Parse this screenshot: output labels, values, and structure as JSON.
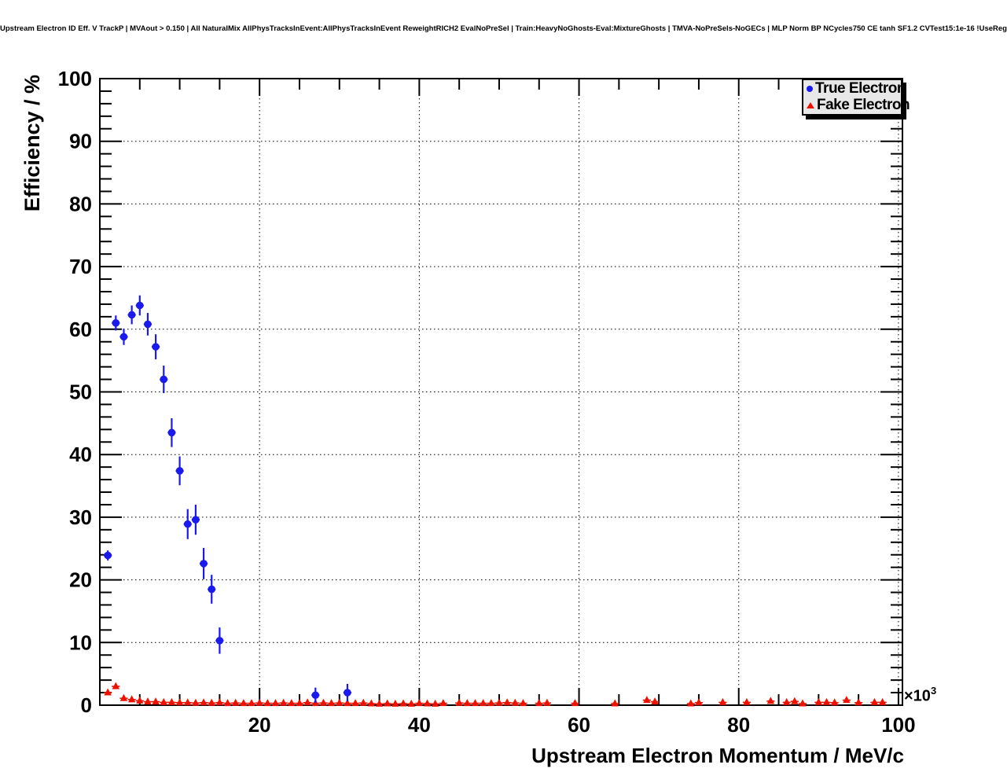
{
  "header": {
    "title": "Upstream Electron ID Eff. V TrackP | MVAout > 0.150 | All NaturalMix AllPhysTracksInEvent:AllPhysTracksInEvent ReweightRICH2 EvalNoPreSel | Train:HeavyNoGhosts-Eval:MixtureGhosts | TMVA-NoPreSels-NoGECs | MLP Norm BP NCycles750 CE tanh SF1.2 CVTest15:1e-16 !UseReg"
  },
  "chart_data": {
    "type": "scatter",
    "title": "Upstream Electron ID Eff. V TrackP | MVAout > 0.150 | All NaturalMix AllPhysTracksInEvent:AllPhysTracksInEvent ReweightRICH2 EvalNoPreSel | Train:HeavyNoGhosts-Eval:MixtureGhosts | TMVA-NoPreSels-NoGECs | MLP Norm BP NCycles750 CE tanh SF1.2 CVTest15:1e-16 !UseReg",
    "xlabel": "Upstream Electron Momentum / MeV/c",
    "ylabel": "Efficiency / %",
    "x_multiplier_base": "×10",
    "x_multiplier_exponent": "3",
    "xlim": [
      0,
      100.5
    ],
    "ylim": [
      0,
      100
    ],
    "x_major_ticks": [
      20,
      40,
      60,
      80,
      100
    ],
    "x_minor_tick_step": 5,
    "y_major_ticks": [
      0,
      10,
      20,
      30,
      40,
      50,
      60,
      70,
      80,
      90,
      100
    ],
    "y_minor_tick_step": 2,
    "grid": {
      "style": "dotted",
      "color": "#000000",
      "horizontal_at": [
        10,
        20,
        30,
        40,
        50,
        60,
        70,
        80,
        90,
        100
      ],
      "vertical_at": [
        20,
        40,
        60,
        80,
        100
      ]
    },
    "legend": {
      "position": "top-right",
      "background": "#e8e8e8",
      "entries": [
        {
          "label": "True Electron",
          "marker": "circle",
          "color": "#1a1aee"
        },
        {
          "label": "Fake Electron",
          "marker": "triangle",
          "color": "#ee1100"
        }
      ]
    },
    "series": [
      {
        "name": "True Electron",
        "marker": "circle",
        "color": "#1a1aee",
        "xerr": 0.5,
        "points": [
          {
            "x": 1.0,
            "y": 23.9,
            "ey": 0.8
          },
          {
            "x": 2.0,
            "y": 61.0,
            "ey": 1.2
          },
          {
            "x": 3.0,
            "y": 58.8,
            "ey": 1.3
          },
          {
            "x": 4.0,
            "y": 62.3,
            "ey": 1.5
          },
          {
            "x": 5.0,
            "y": 63.8,
            "ey": 1.6
          },
          {
            "x": 6.0,
            "y": 60.8,
            "ey": 1.8
          },
          {
            "x": 7.0,
            "y": 57.2,
            "ey": 2.0
          },
          {
            "x": 8.0,
            "y": 52.0,
            "ey": 2.2
          },
          {
            "x": 9.0,
            "y": 43.5,
            "ey": 2.3
          },
          {
            "x": 10.0,
            "y": 37.4,
            "ey": 2.3
          },
          {
            "x": 11.0,
            "y": 28.9,
            "ey": 2.4
          },
          {
            "x": 12.0,
            "y": 29.6,
            "ey": 2.4
          },
          {
            "x": 13.0,
            "y": 22.6,
            "ey": 2.5
          },
          {
            "x": 14.0,
            "y": 18.5,
            "ey": 2.3
          },
          {
            "x": 15.0,
            "y": 10.3,
            "ey": 2.1
          },
          {
            "x": 27.0,
            "y": 1.6,
            "ey": 1.2
          },
          {
            "x": 31.0,
            "y": 2.0,
            "ey": 1.4
          }
        ]
      },
      {
        "name": "Fake Electron",
        "marker": "triangle",
        "color": "#ee1100",
        "xerr": 0.5,
        "points": [
          {
            "x": 1,
            "y": 2.0,
            "ey": 0.3
          },
          {
            "x": 2,
            "y": 3.0,
            "ey": 0.3
          },
          {
            "x": 3,
            "y": 1.1,
            "ey": 0.2
          },
          {
            "x": 4,
            "y": 0.9,
            "ey": 0.15
          },
          {
            "x": 5,
            "y": 0.7,
            "ey": 0.12
          },
          {
            "x": 6,
            "y": 0.55,
            "ey": 0.1
          },
          {
            "x": 7,
            "y": 0.55,
            "ey": 0.1
          },
          {
            "x": 8,
            "y": 0.45,
            "ey": 0.1
          },
          {
            "x": 9,
            "y": 0.45,
            "ey": 0.1
          },
          {
            "x": 10,
            "y": 0.4,
            "ey": 0.1
          },
          {
            "x": 11,
            "y": 0.4,
            "ey": 0.1
          },
          {
            "x": 12,
            "y": 0.35,
            "ey": 0.1
          },
          {
            "x": 13,
            "y": 0.4,
            "ey": 0.1
          },
          {
            "x": 14,
            "y": 0.35,
            "ey": 0.1
          },
          {
            "x": 15,
            "y": 0.4,
            "ey": 0.1
          },
          {
            "x": 16,
            "y": 0.3,
            "ey": 0.1
          },
          {
            "x": 17,
            "y": 0.35,
            "ey": 0.1
          },
          {
            "x": 18,
            "y": 0.3,
            "ey": 0.1
          },
          {
            "x": 19,
            "y": 0.3,
            "ey": 0.1
          },
          {
            "x": 20,
            "y": 0.35,
            "ey": 0.1
          },
          {
            "x": 21,
            "y": 0.3,
            "ey": 0.1
          },
          {
            "x": 22,
            "y": 0.3,
            "ey": 0.1
          },
          {
            "x": 23,
            "y": 0.35,
            "ey": 0.1
          },
          {
            "x": 24,
            "y": 0.3,
            "ey": 0.1
          },
          {
            "x": 25,
            "y": 0.3,
            "ey": 0.1
          },
          {
            "x": 26,
            "y": 0.4,
            "ey": 0.12
          },
          {
            "x": 27,
            "y": 0.3,
            "ey": 0.1
          },
          {
            "x": 28,
            "y": 0.35,
            "ey": 0.1
          },
          {
            "x": 29,
            "y": 0.3,
            "ey": 0.1
          },
          {
            "x": 30,
            "y": 0.35,
            "ey": 0.1
          },
          {
            "x": 31,
            "y": 0.3,
            "ey": 0.1
          },
          {
            "x": 32,
            "y": 0.3,
            "ey": 0.1
          },
          {
            "x": 33,
            "y": 0.35,
            "ey": 0.1
          },
          {
            "x": 34,
            "y": 0.25,
            "ey": 0.1
          },
          {
            "x": 35,
            "y": 0.2,
            "ey": 0.08
          },
          {
            "x": 36,
            "y": 0.25,
            "ey": 0.08
          },
          {
            "x": 37,
            "y": 0.2,
            "ey": 0.08
          },
          {
            "x": 38,
            "y": 0.25,
            "ey": 0.08
          },
          {
            "x": 39,
            "y": 0.2,
            "ey": 0.08
          },
          {
            "x": 40,
            "y": 0.3,
            "ey": 0.1
          },
          {
            "x": 41,
            "y": 0.25,
            "ey": 0.1
          },
          {
            "x": 42,
            "y": 0.2,
            "ey": 0.08
          },
          {
            "x": 43,
            "y": 0.3,
            "ey": 0.1
          },
          {
            "x": 45,
            "y": 0.35,
            "ey": 0.12
          },
          {
            "x": 46,
            "y": 0.3,
            "ey": 0.1
          },
          {
            "x": 47,
            "y": 0.3,
            "ey": 0.1
          },
          {
            "x": 48,
            "y": 0.3,
            "ey": 0.1
          },
          {
            "x": 49,
            "y": 0.3,
            "ey": 0.1
          },
          {
            "x": 50,
            "y": 0.35,
            "ey": 0.12
          },
          {
            "x": 51,
            "y": 0.4,
            "ey": 0.15
          },
          {
            "x": 52,
            "y": 0.35,
            "ey": 0.12
          },
          {
            "x": 53,
            "y": 0.3,
            "ey": 0.1
          },
          {
            "x": 55,
            "y": 0.3,
            "ey": 0.12
          },
          {
            "x": 56,
            "y": 0.35,
            "ey": 0.12
          },
          {
            "x": 59.5,
            "y": 0.3,
            "ey": 0.15
          },
          {
            "x": 64.5,
            "y": 0.25,
            "ey": 0.15
          },
          {
            "x": 68.5,
            "y": 0.8,
            "ey": 0.4
          },
          {
            "x": 69.5,
            "y": 0.55,
            "ey": 0.3
          },
          {
            "x": 74,
            "y": 0.25,
            "ey": 0.15
          },
          {
            "x": 75,
            "y": 0.4,
            "ey": 0.2
          },
          {
            "x": 78,
            "y": 0.45,
            "ey": 0.2
          },
          {
            "x": 81,
            "y": 0.45,
            "ey": 0.2
          },
          {
            "x": 84,
            "y": 0.65,
            "ey": 0.35
          },
          {
            "x": 86,
            "y": 0.45,
            "ey": 0.2
          },
          {
            "x": 87,
            "y": 0.6,
            "ey": 0.3
          },
          {
            "x": 88,
            "y": 0.25,
            "ey": 0.15
          },
          {
            "x": 90,
            "y": 0.45,
            "ey": 0.2
          },
          {
            "x": 91,
            "y": 0.45,
            "ey": 0.2
          },
          {
            "x": 92,
            "y": 0.4,
            "ey": 0.2
          },
          {
            "x": 93.5,
            "y": 0.8,
            "ey": 0.4
          },
          {
            "x": 95,
            "y": 0.4,
            "ey": 0.2
          },
          {
            "x": 97,
            "y": 0.45,
            "ey": 0.2
          },
          {
            "x": 98,
            "y": 0.45,
            "ey": 0.2
          }
        ]
      }
    ]
  }
}
